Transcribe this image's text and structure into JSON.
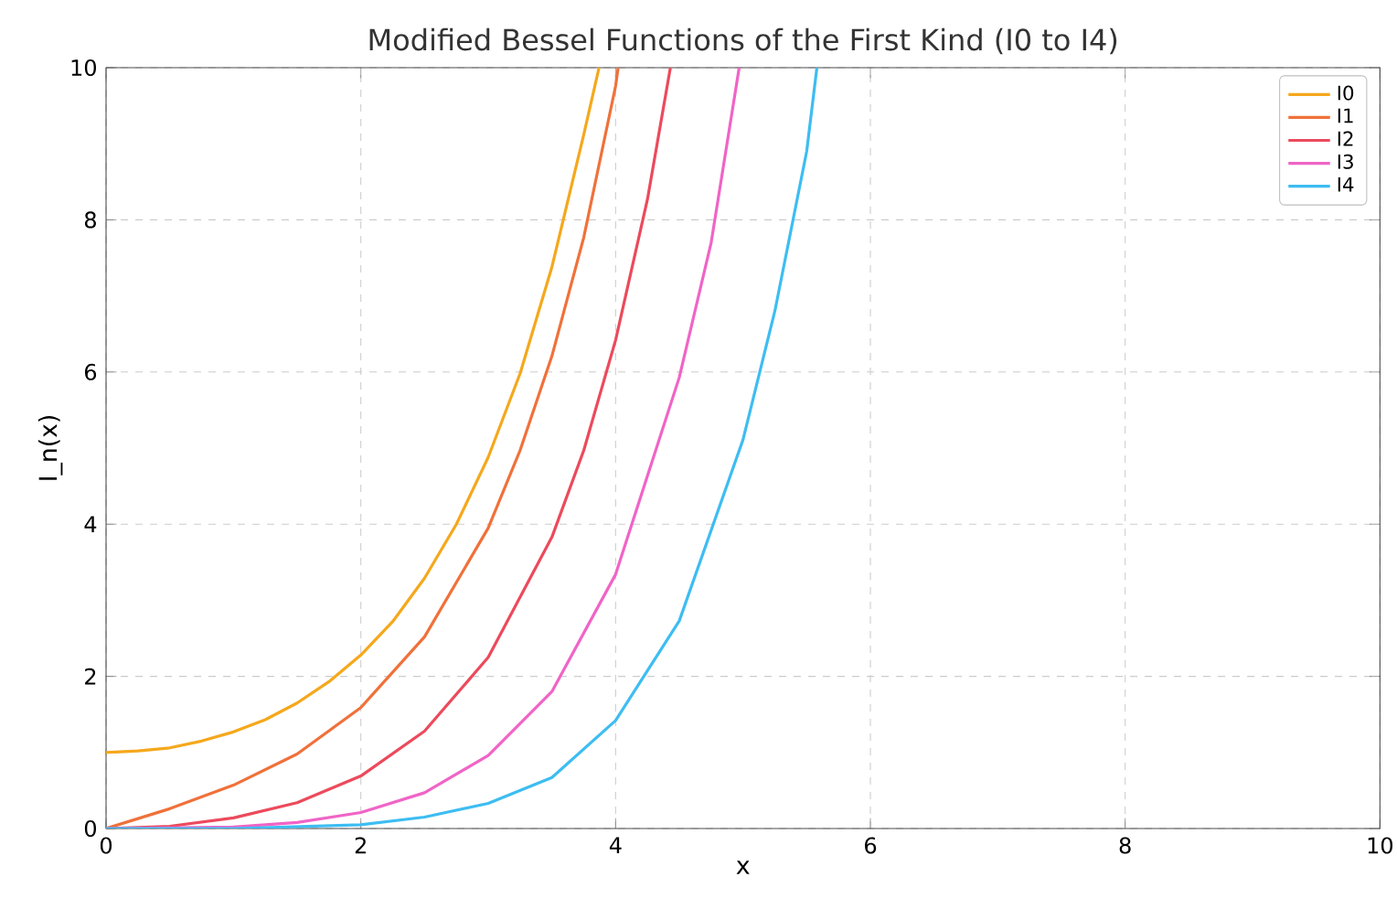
{
  "chart_data": {
    "type": "line",
    "title": "Modified Bessel Functions of the First Kind (I0 to I4)",
    "xlabel": "x",
    "ylabel": "I_n(x)",
    "xlim": [
      0,
      10
    ],
    "ylim": [
      0,
      10
    ],
    "xticks": [
      0,
      2,
      4,
      6,
      8,
      10
    ],
    "yticks": [
      0,
      2,
      4,
      6,
      8,
      10
    ],
    "grid": true,
    "legend": "top right",
    "marker": "none",
    "line_style": "solid",
    "series": [
      {
        "name": "I0",
        "color": "#f5a81c",
        "x": [
          0,
          0.25,
          0.5,
          0.75,
          1,
          1.25,
          1.5,
          1.75,
          2,
          2.25,
          2.5,
          2.75,
          3,
          3.25,
          3.5,
          3.75,
          3.87
        ],
        "values": [
          1.0,
          1.02,
          1.06,
          1.15,
          1.27,
          1.43,
          1.65,
          1.93,
          2.28,
          2.72,
          3.29,
          4.0,
          4.88,
          5.98,
          7.38,
          9.12,
          10.0
        ]
      },
      {
        "name": "I1",
        "color": "#f0713a",
        "x": [
          0,
          0.5,
          1,
          1.5,
          2,
          2.5,
          3,
          3.25,
          3.5,
          3.75,
          4,
          4.02
        ],
        "values": [
          0,
          0.26,
          0.57,
          0.98,
          1.59,
          2.52,
          3.95,
          4.97,
          6.21,
          7.77,
          9.76,
          10.0
        ]
      },
      {
        "name": "I2",
        "color": "#ec4a5c",
        "x": [
          0,
          0.5,
          1,
          1.5,
          2,
          2.5,
          3,
          3.5,
          3.75,
          4,
          4.25,
          4.43
        ],
        "values": [
          0,
          0.03,
          0.14,
          0.34,
          0.69,
          1.28,
          2.25,
          3.83,
          4.97,
          6.42,
          8.27,
          10.0
        ]
      },
      {
        "name": "I3",
        "color": "#f064c6",
        "x": [
          0,
          1,
          1.5,
          2,
          2.5,
          3,
          3.5,
          4,
          4.5,
          4.75,
          4.97
        ],
        "values": [
          0,
          0.02,
          0.08,
          0.21,
          0.47,
          0.96,
          1.8,
          3.34,
          5.93,
          7.7,
          10.0
        ]
      },
      {
        "name": "I4",
        "color": "#3dbdf2",
        "x": [
          0,
          1,
          2,
          2.5,
          3,
          3.5,
          4,
          4.5,
          5,
          5.25,
          5.5,
          5.58
        ],
        "values": [
          0,
          0.0,
          0.05,
          0.15,
          0.33,
          0.67,
          1.42,
          2.73,
          5.11,
          6.8,
          8.9,
          10.0
        ]
      }
    ]
  }
}
